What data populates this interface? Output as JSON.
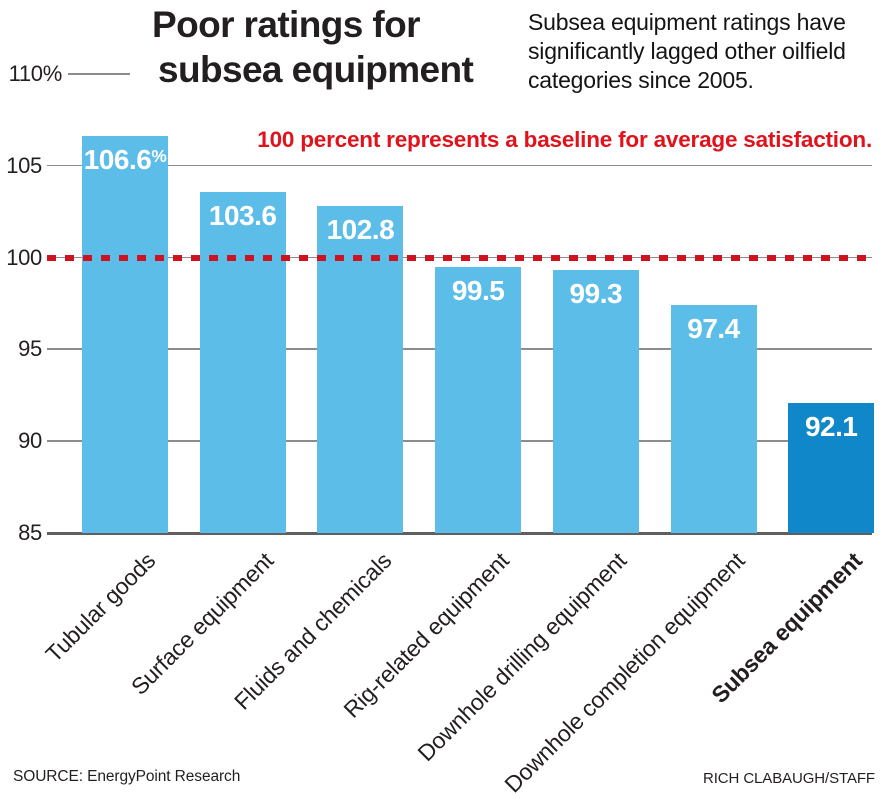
{
  "header": {
    "title_lines": [
      "Poor ratings for",
      "subsea equipment"
    ],
    "subtitle_lines": [
      "Subsea equipment ratings have",
      "significantly lagged other oilfield",
      "categories since 2005."
    ]
  },
  "annotation": "100 percent represents a baseline for average satisfaction.",
  "footer": {
    "source": "SOURCE: EnergyPoint Research",
    "credit": "RICH CLABAUGH/STAFF"
  },
  "colors": {
    "bar": "#5cbde9",
    "bar_highlight": "#0f87c9",
    "red": "#e0121c",
    "red_dash": "#cf1220",
    "grid": "#8c8c8c",
    "baseline_axis": "#5f5f5f",
    "text": "#231f20",
    "bar_value_text": "#ffffff"
  },
  "chart_data": {
    "type": "bar",
    "title": "Poor ratings for subsea equipment",
    "subtitle": "Subsea equipment ratings have significantly lagged other oilfield categories since 2005.",
    "categories": [
      "Tubular goods",
      "Surface equipment",
      "Fluids and chemicals",
      "Rig-related equipment",
      "Downhole drilling equipment",
      "Downhole completion equipment",
      "Subsea equipment"
    ],
    "values": [
      106.6,
      103.6,
      102.8,
      99.5,
      99.3,
      97.4,
      92.1
    ],
    "value_labels": [
      "106.6%",
      "103.6",
      "102.8",
      "99.5",
      "99.3",
      "97.4",
      "92.1"
    ],
    "highlight_index": 6,
    "highlight_category": "Subsea equipment",
    "y_ticks": [
      110,
      105,
      100,
      95,
      90,
      85
    ],
    "y_tick_labels": [
      "110%",
      "105",
      "100",
      "95",
      "90",
      "85"
    ],
    "ylim": [
      85,
      110
    ],
    "grid": true,
    "legend": false,
    "reference_line": {
      "value": 100,
      "style": "red-dashed",
      "label": "100 percent represents a baseline for average satisfaction."
    }
  }
}
